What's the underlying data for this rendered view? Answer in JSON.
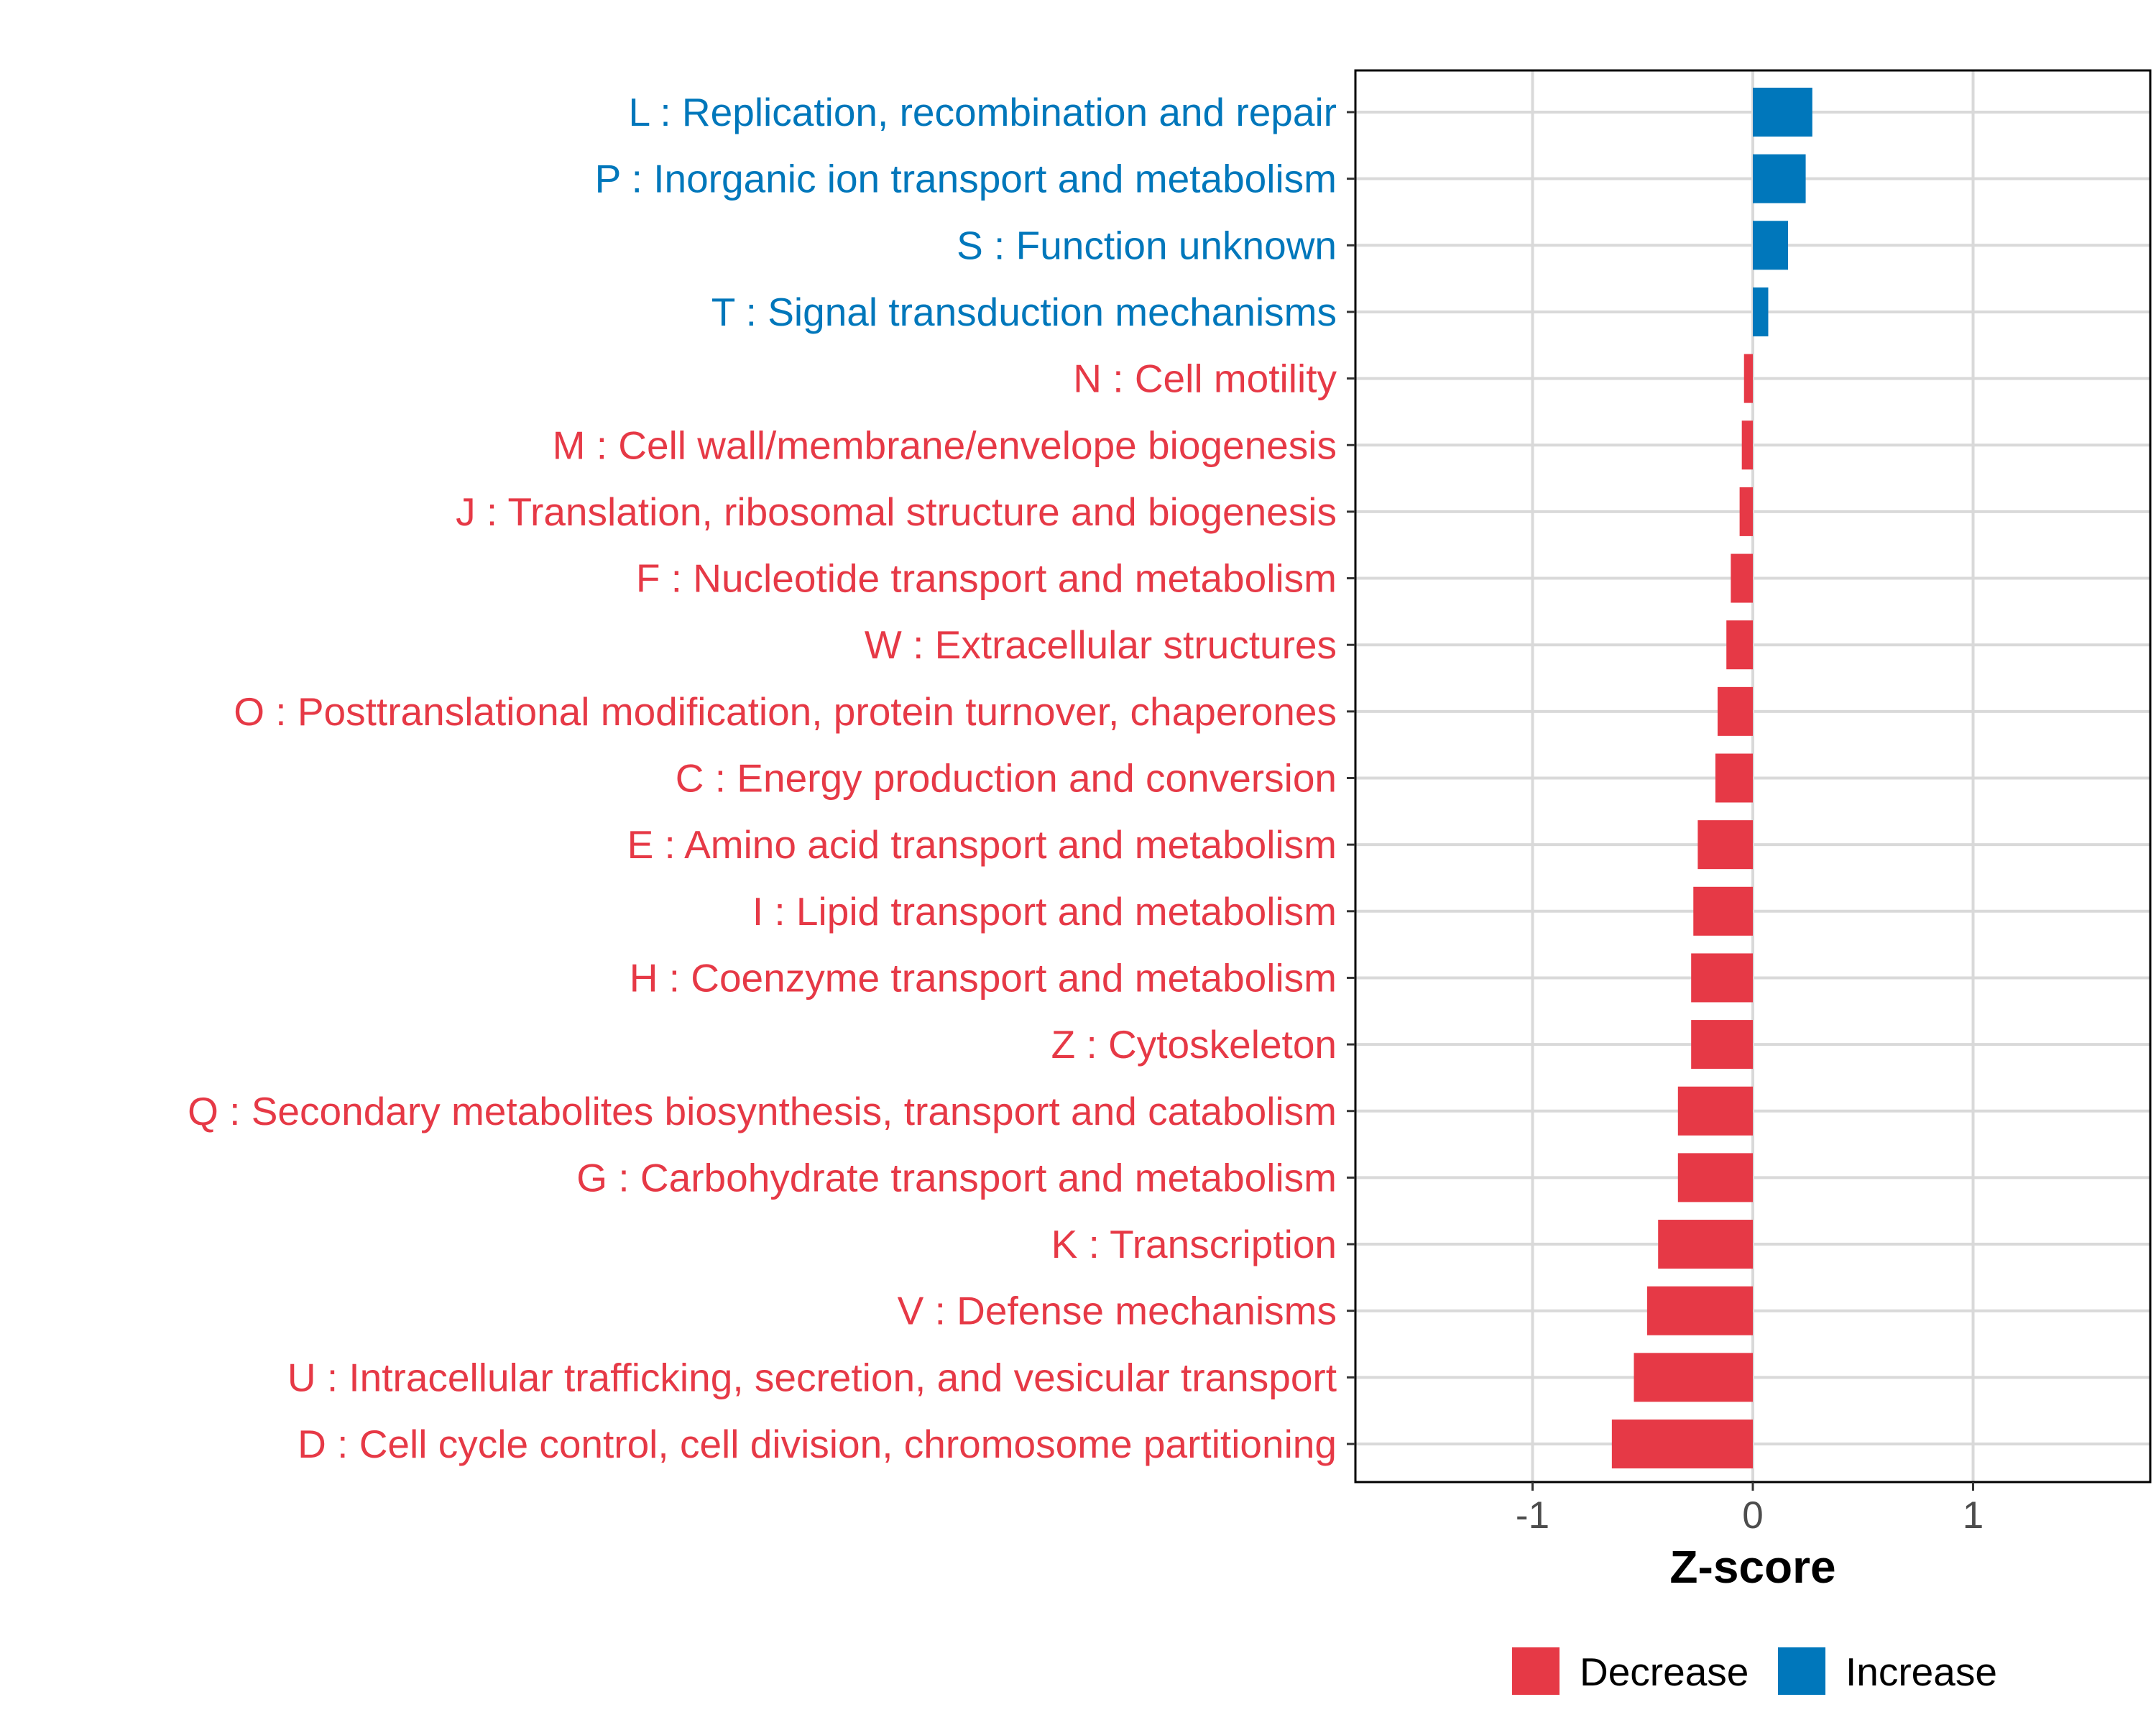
{
  "chart_data": {
    "type": "bar",
    "orientation": "horizontal",
    "title": "",
    "xlabel": "Z-score",
    "ylabel": "",
    "xlim": [
      -1.8,
      1.8
    ],
    "x_ticks": [
      -1,
      0,
      1
    ],
    "x_tick_labels": [
      "-1",
      "0",
      "1"
    ],
    "grid": true,
    "legend_position": "bottom",
    "legend": [
      {
        "name": "Decrease",
        "color": "#E63946"
      },
      {
        "name": "Increase",
        "color": "#0077BB"
      }
    ],
    "categories": [
      "L : Replication, recombination and repair",
      "P : Inorganic ion transport and metabolism",
      "S : Function unknown",
      "T : Signal transduction mechanisms",
      "N : Cell motility",
      "M : Cell wall/membrane/envelope biogenesis",
      "J : Translation, ribosomal structure and biogenesis",
      "F : Nucleotide transport and metabolism",
      "W : Extracellular structures",
      "O : Posttranslational modification, protein turnover, chaperones",
      "C : Energy production and conversion",
      "E : Amino acid transport and metabolism",
      "I : Lipid transport and metabolism",
      "H : Coenzyme transport and metabolism",
      "Z : Cytoskeleton",
      "Q : Secondary metabolites biosynthesis, transport and catabolism",
      "G : Carbohydrate transport and metabolism",
      "K : Transcription",
      "V : Defense mechanisms",
      "U : Intracellular trafficking, secretion, and vesicular transport",
      "D : Cell cycle control, cell division, chromosome partitioning"
    ],
    "values": [
      0.27,
      0.24,
      0.16,
      0.07,
      -0.04,
      -0.05,
      -0.06,
      -0.1,
      -0.12,
      -0.16,
      -0.17,
      -0.25,
      -0.27,
      -0.28,
      -0.28,
      -0.34,
      -0.34,
      -0.43,
      -0.48,
      -0.54,
      -0.64
    ],
    "groups": [
      "Increase",
      "Increase",
      "Increase",
      "Increase",
      "Decrease",
      "Decrease",
      "Decrease",
      "Decrease",
      "Decrease",
      "Decrease",
      "Decrease",
      "Decrease",
      "Decrease",
      "Decrease",
      "Decrease",
      "Decrease",
      "Decrease",
      "Decrease",
      "Decrease",
      "Decrease",
      "Decrease"
    ]
  }
}
